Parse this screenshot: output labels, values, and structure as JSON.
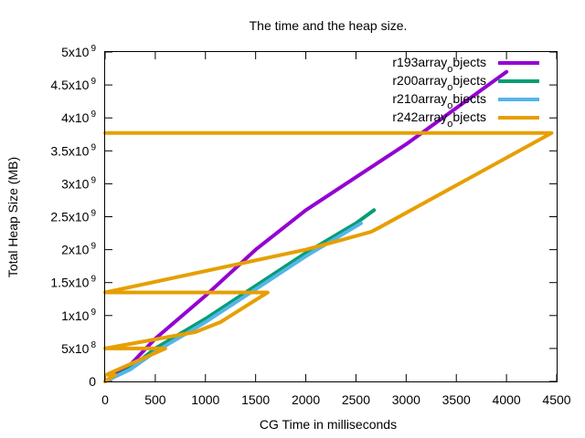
{
  "chart_data": {
    "type": "line",
    "title": "The time and the heap size.",
    "xlabel": "CG Time in milliseconds",
    "ylabel": "Total Heap Size (MB)",
    "xlim": [
      0,
      4500
    ],
    "ylim": [
      0,
      5000000000
    ],
    "grid": false,
    "legend_position": "top-right",
    "x_ticks": [
      {
        "value": 0,
        "label": "0"
      },
      {
        "value": 500,
        "label": "500"
      },
      {
        "value": 1000,
        "label": "1000"
      },
      {
        "value": 1500,
        "label": "1500"
      },
      {
        "value": 2000,
        "label": "2000"
      },
      {
        "value": 2500,
        "label": "2500"
      },
      {
        "value": 3000,
        "label": "3000"
      },
      {
        "value": 3500,
        "label": "3500"
      },
      {
        "value": 4000,
        "label": "4000"
      },
      {
        "value": 4500,
        "label": "4500"
      }
    ],
    "y_ticks": [
      {
        "value": 0,
        "mantissa": "0",
        "exponent": ""
      },
      {
        "value": 500000000,
        "mantissa": "5x10",
        "exponent": "8"
      },
      {
        "value": 1000000000,
        "mantissa": "1x10",
        "exponent": "9"
      },
      {
        "value": 1500000000,
        "mantissa": "1.5x10",
        "exponent": "9"
      },
      {
        "value": 2000000000,
        "mantissa": "2x10",
        "exponent": "9"
      },
      {
        "value": 2500000000,
        "mantissa": "2.5x10",
        "exponent": "9"
      },
      {
        "value": 3000000000,
        "mantissa": "3x10",
        "exponent": "9"
      },
      {
        "value": 3500000000,
        "mantissa": "3.5x10",
        "exponent": "9"
      },
      {
        "value": 4000000000,
        "mantissa": "4x10",
        "exponent": "9"
      },
      {
        "value": 4500000000,
        "mantissa": "4.5x10",
        "exponent": "9"
      },
      {
        "value": 5000000000,
        "mantissa": "5x10",
        "exponent": "9"
      }
    ],
    "series": [
      {
        "name": "r193array_objects",
        "legend_main": "r193array",
        "legend_sub": "o",
        "legend_rest": "bjects",
        "color": "#9400d3",
        "points": [
          [
            0,
            0
          ],
          [
            250,
            250000000
          ],
          [
            500,
            650000000
          ],
          [
            1000,
            1300000000
          ],
          [
            1500,
            2000000000
          ],
          [
            2000,
            2600000000
          ],
          [
            2500,
            3100000000
          ],
          [
            3000,
            3600000000
          ],
          [
            3500,
            4150000000
          ],
          [
            4000,
            4700000000
          ]
        ]
      },
      {
        "name": "r200array_objects",
        "legend_main": "r200array",
        "legend_sub": "o",
        "legend_rest": "bjects",
        "color": "#009e73",
        "points": [
          [
            0,
            0
          ],
          [
            250,
            200000000
          ],
          [
            500,
            500000000
          ],
          [
            1000,
            950000000
          ],
          [
            1500,
            1450000000
          ],
          [
            2000,
            1950000000
          ],
          [
            2500,
            2400000000
          ],
          [
            2680,
            2600000000
          ]
        ]
      },
      {
        "name": "r210array_objects",
        "legend_main": "r210array",
        "legend_sub": "o",
        "legend_rest": "bjects",
        "color": "#56b4e9",
        "points": [
          [
            0,
            0
          ],
          [
            250,
            180000000
          ],
          [
            500,
            450000000
          ],
          [
            1000,
            900000000
          ],
          [
            1500,
            1400000000
          ],
          [
            2000,
            1900000000
          ],
          [
            2550,
            2400000000
          ]
        ]
      },
      {
        "name": "r242array_objects",
        "legend_main": "r242array",
        "legend_sub": "o",
        "legend_rest": "bjects",
        "color": "#e69f00",
        "points": [
          [
            0,
            0
          ],
          [
            100,
            100000000
          ],
          [
            10,
            100000000
          ],
          [
            600,
            500000000
          ],
          [
            0,
            500000000
          ],
          [
            900,
            750000000
          ],
          [
            1150,
            900000000
          ],
          [
            1620,
            1350000000
          ],
          [
            0,
            1350000000
          ],
          [
            2000,
            2000000000
          ],
          [
            2650,
            2270000000
          ],
          [
            2750,
            2350000000
          ],
          [
            4450,
            3770000000
          ],
          [
            0,
            3770000000
          ]
        ]
      }
    ]
  }
}
